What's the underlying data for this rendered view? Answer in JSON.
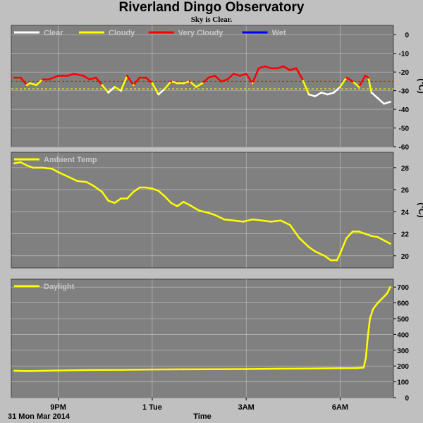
{
  "header": {
    "title": "Riverland Dingo Observatory",
    "subtitle": "Sky is Clear."
  },
  "footer": {
    "date_label": "31 Mon Mar 2014",
    "xaxis_label": "Time"
  },
  "colors": {
    "background": "#c0c0c0",
    "panel": "#808080",
    "grid": "#ffffff",
    "clear": "#ffffff",
    "cloudy": "#ffff00",
    "very_cloudy": "#ff0000",
    "wet": "#0000ff",
    "threshold_cloudy": "#ffff00",
    "threshold_very_cloudy": "#ff0000"
  },
  "chart_data": [
    {
      "type": "line",
      "id": "sky",
      "legend": [
        {
          "name": "Clear",
          "color": "#ffffff"
        },
        {
          "name": "Cloudy",
          "color": "#ffff00"
        },
        {
          "name": "Very Cloudy",
          "color": "#ff0000"
        },
        {
          "name": "Wet",
          "color": "#0000ff"
        }
      ],
      "ylabel": "(°C)",
      "yticks": [
        0,
        -10,
        -20,
        -30,
        -40,
        -50,
        -60
      ],
      "ylim": [
        -60,
        5
      ],
      "xticks": [
        {
          "h": 21,
          "label": "9PM"
        },
        {
          "h": 24,
          "label": "1 Tue"
        },
        {
          "h": 27,
          "label": "3AM"
        },
        {
          "h": 30,
          "label": "6AM"
        }
      ],
      "xlim": [
        19.5,
        31.7
      ],
      "thresholds": [
        {
          "value": -25,
          "color": "#ff0000"
        },
        {
          "value": -29,
          "color": "#ffff00"
        }
      ],
      "x": [
        19.6,
        19.8,
        20.0,
        20.1,
        20.3,
        20.5,
        20.7,
        21.0,
        21.3,
        21.5,
        21.8,
        22.0,
        22.2,
        22.4,
        22.6,
        22.8,
        23.0,
        23.2,
        23.4,
        23.6,
        23.8,
        24.0,
        24.2,
        24.4,
        24.6,
        24.8,
        25.0,
        25.2,
        25.4,
        25.6,
        25.8,
        26.0,
        26.2,
        26.4,
        26.6,
        26.8,
        27.0,
        27.2,
        27.4,
        27.6,
        27.8,
        28.0,
        28.2,
        28.4,
        28.6,
        28.8,
        29.0,
        29.2,
        29.4,
        29.6,
        29.8,
        30.0,
        30.2,
        30.4,
        30.6,
        30.8,
        30.9,
        31.0,
        31.2,
        31.4,
        31.6
      ],
      "values": [
        -23,
        -23,
        -27,
        -26,
        -27,
        -24,
        -24,
        -22,
        -22,
        -21,
        -22,
        -24,
        -23,
        -27,
        -31,
        -28,
        -30,
        -22,
        -27,
        -23,
        -23,
        -26,
        -32,
        -29,
        -25,
        -26,
        -26,
        -25,
        -28,
        -26,
        -23,
        -22,
        -25,
        -24,
        -21,
        -22,
        -21,
        -26,
        -18,
        -17,
        -18,
        -18,
        -17,
        -19,
        -18,
        -24,
        -32,
        -33,
        -31,
        -32,
        -31,
        -28,
        -23,
        -25,
        -28,
        -22,
        -23,
        -31,
        -34,
        -37,
        -36
      ]
    },
    {
      "type": "line",
      "id": "ambient",
      "legend": [
        {
          "name": "Ambient Temp",
          "color": "#ffff00"
        }
      ],
      "ylabel": "(°C)",
      "yticks": [
        20,
        22,
        24,
        26,
        28
      ],
      "ylim": [
        18.9,
        29.4
      ],
      "xlim": [
        19.5,
        31.7
      ],
      "x": [
        19.6,
        19.8,
        20.0,
        20.2,
        20.5,
        20.8,
        21.0,
        21.3,
        21.6,
        21.9,
        22.1,
        22.4,
        22.6,
        22.8,
        23.0,
        23.2,
        23.4,
        23.6,
        23.8,
        24.0,
        24.2,
        24.4,
        24.6,
        24.8,
        25.0,
        25.2,
        25.5,
        25.8,
        26.0,
        26.3,
        26.6,
        26.9,
        27.2,
        27.5,
        27.8,
        28.1,
        28.4,
        28.7,
        29.0,
        29.2,
        29.5,
        29.7,
        29.9,
        30.0,
        30.2,
        30.4,
        30.6,
        30.8,
        31.0,
        31.2,
        31.4,
        31.6
      ],
      "values": [
        28.4,
        28.5,
        28.2,
        28.0,
        28.0,
        27.9,
        27.6,
        27.2,
        26.8,
        26.7,
        26.4,
        25.8,
        25.0,
        24.8,
        25.2,
        25.2,
        25.8,
        26.2,
        26.2,
        26.1,
        25.9,
        25.4,
        24.8,
        24.5,
        24.9,
        24.6,
        24.1,
        23.9,
        23.7,
        23.3,
        23.2,
        23.1,
        23.3,
        23.2,
        23.1,
        23.2,
        22.8,
        21.6,
        20.8,
        20.4,
        20.0,
        19.6,
        19.6,
        20.2,
        21.6,
        22.2,
        22.2,
        22.0,
        21.8,
        21.7,
        21.4,
        21.1
      ]
    },
    {
      "type": "line",
      "id": "daylight",
      "legend": [
        {
          "name": "Daylight",
          "color": "#ffff00"
        }
      ],
      "yticks": [
        0,
        100,
        200,
        300,
        400,
        500,
        600,
        700
      ],
      "ylim": [
        0,
        750
      ],
      "xlim": [
        19.5,
        31.7
      ],
      "x": [
        19.6,
        20.0,
        21.0,
        22.0,
        23.0,
        24.0,
        25.0,
        26.0,
        27.0,
        28.0,
        29.0,
        30.0,
        30.5,
        30.75,
        30.82,
        30.88,
        30.95,
        31.05,
        31.2,
        31.35,
        31.5,
        31.6
      ],
      "values": [
        170,
        168,
        172,
        175,
        176,
        178,
        179,
        180,
        181,
        183,
        184,
        186,
        187,
        190,
        250,
        380,
        500,
        560,
        600,
        630,
        660,
        700
      ]
    }
  ]
}
